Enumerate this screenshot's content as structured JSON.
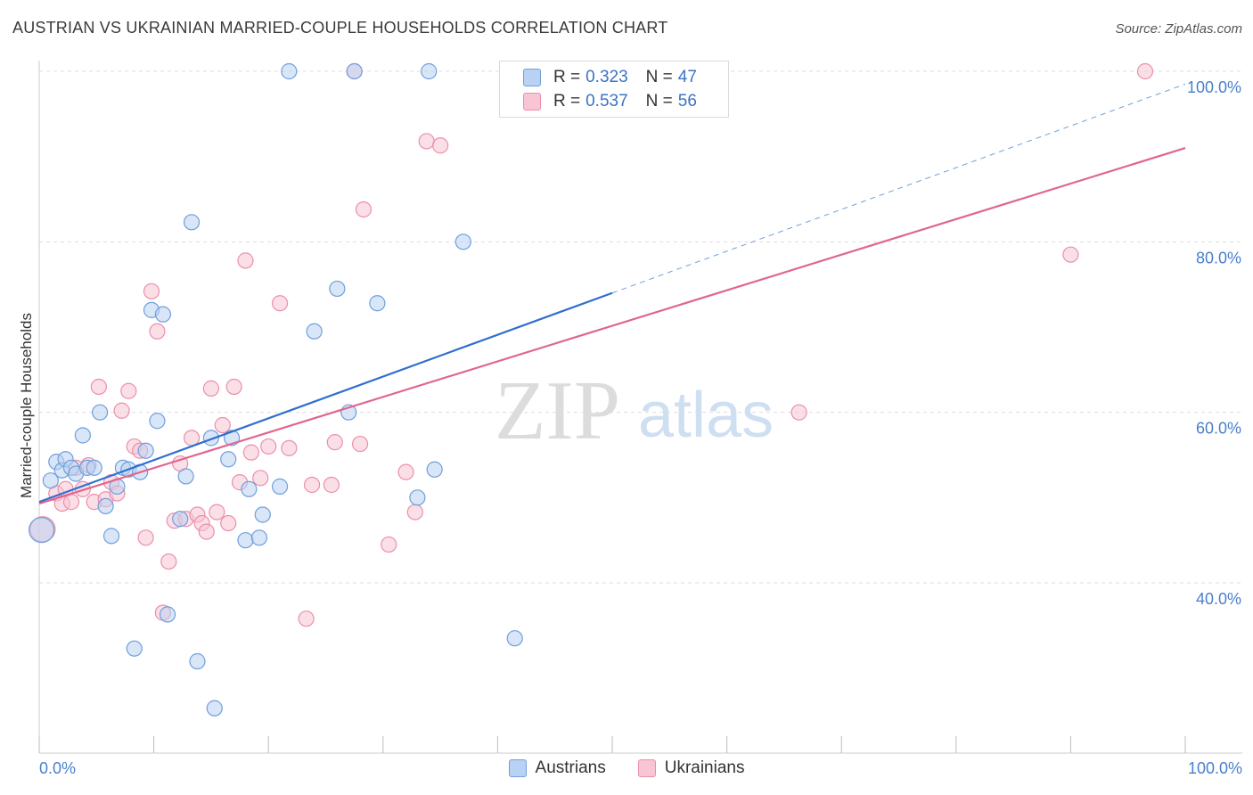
{
  "title": "AUSTRIAN VS UKRAINIAN MARRIED-COUPLE HOUSEHOLDS CORRELATION CHART",
  "source": "Source: ZipAtlas.com",
  "watermark": {
    "zip": "ZIP",
    "atlas": "atlas"
  },
  "legend": {
    "rows": [
      {
        "r_label": "R = ",
        "r_value": "0.323",
        "n_label": "N = ",
        "n_value": "47"
      },
      {
        "r_label": "R = ",
        "r_value": "0.537",
        "n_label": "N = ",
        "n_value": "56"
      }
    ]
  },
  "colors": {
    "austrians_fill": "#b9d1f2",
    "austrians_stroke": "#6f9fdc",
    "austrians_line": "#2f6fcf",
    "ukrainians_fill": "#f8c5d4",
    "ukrainians_stroke": "#eb8fab",
    "ukrainians_line": "#e06690",
    "tick_label": "#4a7fcb",
    "grid": "#dddddd"
  },
  "chart_data": {
    "type": "scatter",
    "title": "AUSTRIAN VS UKRAINIAN MARRIED-COUPLE HOUSEHOLDS CORRELATION CHART",
    "xlabel": "",
    "ylabel": "Married-couple Households",
    "x_tick_labels": [
      "0.0%",
      "100.0%"
    ],
    "y_tick_labels": [
      "100.0%",
      "80.0%",
      "60.0%",
      "40.0%"
    ],
    "y_ticks": [
      100,
      80,
      60,
      40
    ],
    "xlim": [
      0,
      100
    ],
    "ylim": [
      22,
      104
    ],
    "grid": true,
    "legend_position": "top-center",
    "series": [
      {
        "name": "Austrians",
        "color": "#6f9fdc",
        "r": "0.323",
        "n": "47",
        "trend": {
          "x0": 0,
          "y0": 49.5,
          "x1": 50,
          "y1": 74,
          "dashed_to_x": 100,
          "dashed_to_y": 98.5
        },
        "points": [
          [
            0.2,
            46.2
          ],
          [
            1.0,
            52.0
          ],
          [
            1.5,
            54.2
          ],
          [
            2.0,
            53.2
          ],
          [
            2.3,
            54.5
          ],
          [
            2.8,
            53.5
          ],
          [
            3.2,
            52.8
          ],
          [
            3.8,
            57.3
          ],
          [
            4.2,
            53.5
          ],
          [
            4.8,
            53.5
          ],
          [
            5.3,
            60.0
          ],
          [
            5.8,
            49.0
          ],
          [
            6.3,
            45.5
          ],
          [
            6.8,
            51.3
          ],
          [
            7.3,
            53.5
          ],
          [
            7.8,
            53.3
          ],
          [
            8.3,
            32.3
          ],
          [
            8.8,
            53.0
          ],
          [
            9.3,
            55.5
          ],
          [
            9.8,
            72.0
          ],
          [
            10.3,
            59.0
          ],
          [
            10.8,
            71.5
          ],
          [
            11.2,
            36.3
          ],
          [
            12.3,
            47.5
          ],
          [
            12.8,
            52.5
          ],
          [
            13.3,
            82.3
          ],
          [
            13.8,
            30.8
          ],
          [
            15.0,
            57.0
          ],
          [
            15.3,
            25.3
          ],
          [
            16.5,
            54.5
          ],
          [
            16.8,
            57.0
          ],
          [
            18.0,
            45.0
          ],
          [
            18.3,
            51.0
          ],
          [
            19.2,
            45.3
          ],
          [
            19.5,
            48.0
          ],
          [
            21.0,
            51.3
          ],
          [
            21.8,
            100.0
          ],
          [
            24.0,
            69.5
          ],
          [
            26.0,
            74.5
          ],
          [
            27.0,
            60.0
          ],
          [
            27.5,
            100.0
          ],
          [
            29.5,
            72.8
          ],
          [
            33.0,
            50.0
          ],
          [
            34.0,
            100.0
          ],
          [
            34.5,
            53.3
          ],
          [
            37.0,
            80.0
          ],
          [
            41.5,
            33.5
          ]
        ]
      },
      {
        "name": "Ukrainians",
        "color": "#eb8fab",
        "r": "0.537",
        "n": "56",
        "trend": {
          "x0": 0,
          "y0": 49.3,
          "x1": 100,
          "y1": 91.0
        },
        "points": [
          [
            0.3,
            46.3
          ],
          [
            1.5,
            50.5
          ],
          [
            2.0,
            49.3
          ],
          [
            2.3,
            51.0
          ],
          [
            2.8,
            49.5
          ],
          [
            3.2,
            53.5
          ],
          [
            3.8,
            51.0
          ],
          [
            4.3,
            53.8
          ],
          [
            4.8,
            49.5
          ],
          [
            5.2,
            63.0
          ],
          [
            5.8,
            49.8
          ],
          [
            6.3,
            51.8
          ],
          [
            6.8,
            50.5
          ],
          [
            7.2,
            60.2
          ],
          [
            7.8,
            62.5
          ],
          [
            8.3,
            56.0
          ],
          [
            8.8,
            55.5
          ],
          [
            9.3,
            45.3
          ],
          [
            9.8,
            74.2
          ],
          [
            10.3,
            69.5
          ],
          [
            10.8,
            36.5
          ],
          [
            11.3,
            42.5
          ],
          [
            11.8,
            47.3
          ],
          [
            12.3,
            54.0
          ],
          [
            12.8,
            47.5
          ],
          [
            13.3,
            57.0
          ],
          [
            13.8,
            48.0
          ],
          [
            14.2,
            47.0
          ],
          [
            14.6,
            46.0
          ],
          [
            15.0,
            62.8
          ],
          [
            15.5,
            48.3
          ],
          [
            16.0,
            58.5
          ],
          [
            16.5,
            47.0
          ],
          [
            17.0,
            63.0
          ],
          [
            17.5,
            51.8
          ],
          [
            18.0,
            77.8
          ],
          [
            18.5,
            55.3
          ],
          [
            19.3,
            52.3
          ],
          [
            20.0,
            56.0
          ],
          [
            21.0,
            72.8
          ],
          [
            21.8,
            55.8
          ],
          [
            23.3,
            35.8
          ],
          [
            23.8,
            51.5
          ],
          [
            25.5,
            51.5
          ],
          [
            25.8,
            56.5
          ],
          [
            28.0,
            56.3
          ],
          [
            28.3,
            83.8
          ],
          [
            30.5,
            44.5
          ],
          [
            32.0,
            53.0
          ],
          [
            32.8,
            48.3
          ],
          [
            33.8,
            91.8
          ],
          [
            35.0,
            91.3
          ],
          [
            66.3,
            60.0
          ],
          [
            90.0,
            78.5
          ],
          [
            96.5,
            100.0
          ],
          [
            27.5,
            100.0
          ]
        ]
      }
    ]
  }
}
